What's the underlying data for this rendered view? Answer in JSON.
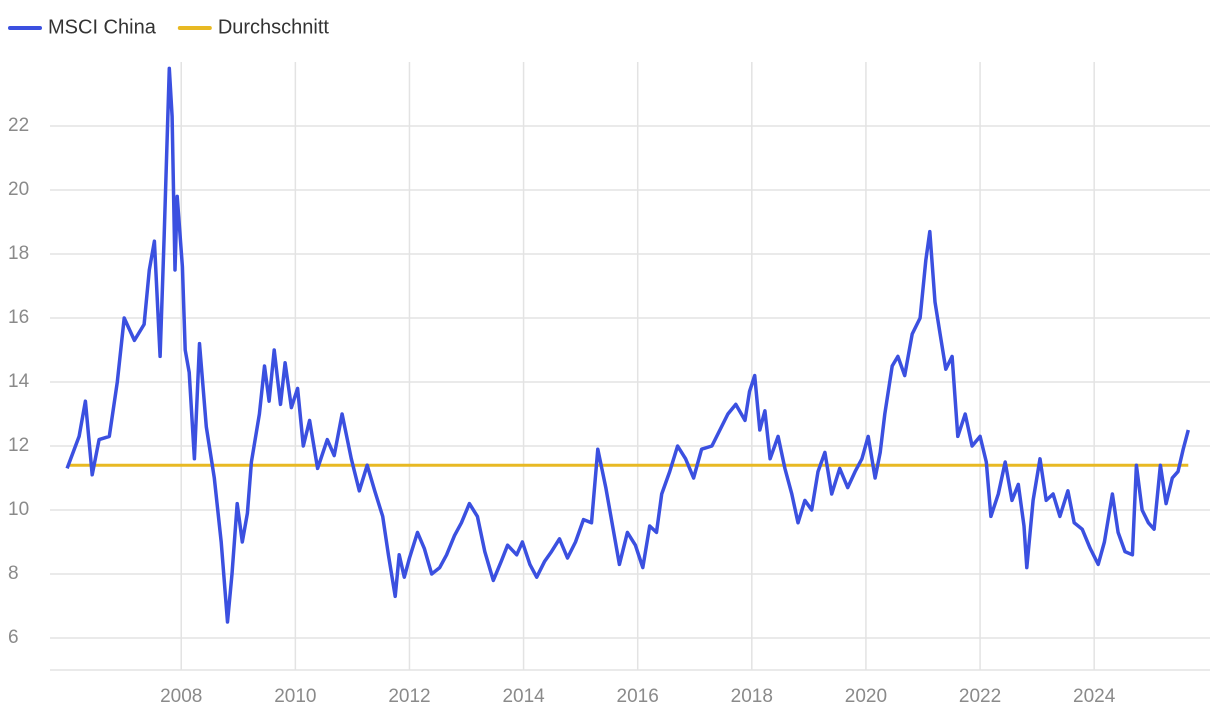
{
  "chart_data": {
    "type": "line",
    "x": [
      2006.0,
      2006.21,
      2006.32,
      2006.44,
      2006.56,
      2006.74,
      2006.88,
      2007.0,
      2007.18,
      2007.35,
      2007.44,
      2007.53,
      2007.63,
      2007.7,
      2007.79,
      2007.84,
      2007.89,
      2007.93,
      2008.02,
      2008.07,
      2008.14,
      2008.23,
      2008.32,
      2008.44,
      2008.58,
      2008.7,
      2008.81,
      2008.89,
      2008.98,
      2009.07,
      2009.16,
      2009.23,
      2009.37,
      2009.46,
      2009.54,
      2009.63,
      2009.74,
      2009.82,
      2009.93,
      2010.04,
      2010.14,
      2010.25,
      2010.39,
      2010.56,
      2010.68,
      2010.82,
      2010.98,
      2011.12,
      2011.26,
      2011.39,
      2011.53,
      2011.63,
      2011.75,
      2011.82,
      2011.91,
      2012.0,
      2012.14,
      2012.26,
      2012.39,
      2012.53,
      2012.65,
      2012.79,
      2012.91,
      2013.05,
      2013.19,
      2013.32,
      2013.47,
      2013.61,
      2013.72,
      2013.88,
      2013.98,
      2014.11,
      2014.23,
      2014.37,
      2014.49,
      2014.63,
      2014.77,
      2014.91,
      2015.05,
      2015.19,
      2015.3,
      2015.44,
      2015.56,
      2015.68,
      2015.82,
      2015.96,
      2016.09,
      2016.21,
      2016.33,
      2016.42,
      2016.56,
      2016.7,
      2016.84,
      2016.98,
      2017.12,
      2017.3,
      2017.44,
      2017.58,
      2017.72,
      2017.88,
      2017.96,
      2018.05,
      2018.14,
      2018.23,
      2018.32,
      2018.46,
      2018.58,
      2018.7,
      2018.81,
      2018.93,
      2019.05,
      2019.16,
      2019.28,
      2019.4,
      2019.54,
      2019.68,
      2019.81,
      2019.93,
      2020.04,
      2020.16,
      2020.25,
      2020.33,
      2020.46,
      2020.56,
      2020.68,
      2020.81,
      2020.95,
      2021.05,
      2021.12,
      2021.21,
      2021.3,
      2021.4,
      2021.51,
      2021.61,
      2021.74,
      2021.86,
      2022.0,
      2022.11,
      2022.19,
      2022.32,
      2022.44,
      2022.56,
      2022.67,
      2022.77,
      2022.82,
      2022.93,
      2023.05,
      2023.16,
      2023.28,
      2023.4,
      2023.54,
      2023.65,
      2023.79,
      2023.93,
      2024.07,
      2024.18,
      2024.32,
      2024.42,
      2024.54,
      2024.67,
      2024.74,
      2024.84,
      2024.95,
      2025.05,
      2025.16,
      2025.26,
      2025.37,
      2025.47,
      2025.56,
      2025.65
    ],
    "series": [
      {
        "name": "MSCI China",
        "color": "#3b50e0",
        "values": [
          11.3,
          12.3,
          13.4,
          11.1,
          12.2,
          12.3,
          14.0,
          16.0,
          15.3,
          15.8,
          17.5,
          18.4,
          14.8,
          18.5,
          23.8,
          22.3,
          17.5,
          19.8,
          17.6,
          15.0,
          14.3,
          11.6,
          15.2,
          12.6,
          11.0,
          9.0,
          6.5,
          8.0,
          10.2,
          9.0,
          9.9,
          11.5,
          13.0,
          14.5,
          13.4,
          15.0,
          13.3,
          14.6,
          13.2,
          13.8,
          12.0,
          12.8,
          11.3,
          12.2,
          11.7,
          13.0,
          11.6,
          10.6,
          11.4,
          10.6,
          9.8,
          8.6,
          7.3,
          8.6,
          7.9,
          8.5,
          9.3,
          8.8,
          8.0,
          8.2,
          8.6,
          9.2,
          9.6,
          10.2,
          9.8,
          8.7,
          7.8,
          8.4,
          8.9,
          8.6,
          9.0,
          8.3,
          7.9,
          8.4,
          8.7,
          9.1,
          8.5,
          9.0,
          9.7,
          9.6,
          11.9,
          10.7,
          9.5,
          8.3,
          9.3,
          8.9,
          8.2,
          9.5,
          9.3,
          10.5,
          11.2,
          12.0,
          11.6,
          11.0,
          11.9,
          12.0,
          12.5,
          13.0,
          13.3,
          12.8,
          13.7,
          14.2,
          12.5,
          13.1,
          11.6,
          12.3,
          11.3,
          10.5,
          9.6,
          10.3,
          10.0,
          11.2,
          11.8,
          10.5,
          11.3,
          10.7,
          11.2,
          11.6,
          12.3,
          11.0,
          11.8,
          13.0,
          14.5,
          14.8,
          14.2,
          15.5,
          16.0,
          17.8,
          18.7,
          16.5,
          15.5,
          14.4,
          14.8,
          12.3,
          13.0,
          12.0,
          12.3,
          11.5,
          9.8,
          10.5,
          11.5,
          10.3,
          10.8,
          9.5,
          8.2,
          10.3,
          11.6,
          10.3,
          10.5,
          9.8,
          10.6,
          9.6,
          9.4,
          8.8,
          8.3,
          9.0,
          10.5,
          9.3,
          8.7,
          8.6,
          11.4,
          10.0,
          9.6,
          9.4,
          11.4,
          10.2,
          11.0,
          11.2,
          11.9,
          12.5
        ]
      },
      {
        "name": "Durchschnitt",
        "color": "#e8b923",
        "x": [
          2006.0,
          2025.65
        ],
        "values": [
          11.4,
          11.4
        ]
      }
    ],
    "xlim": [
      2005.7,
      2026.03
    ],
    "xticks": [
      2008,
      2010,
      2012,
      2014,
      2016,
      2018,
      2020,
      2022,
      2024
    ],
    "ylim": [
      5,
      24
    ],
    "yticks": [
      6,
      8,
      10,
      12,
      14,
      16,
      18,
      20,
      22
    ],
    "grid": true,
    "legend": "top-left"
  }
}
